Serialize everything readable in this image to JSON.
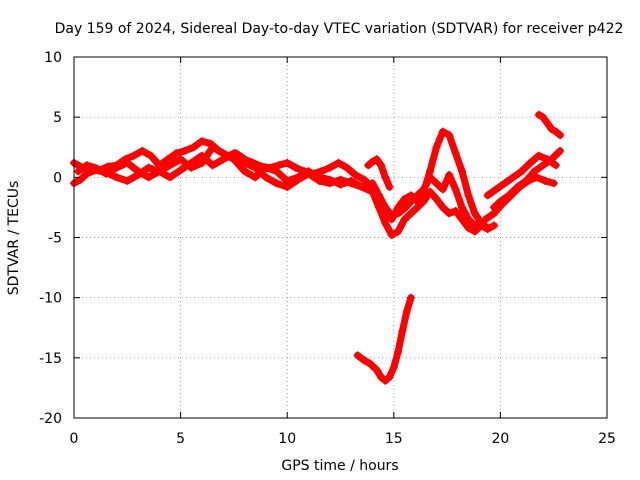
{
  "chart_data": {
    "type": "scatter",
    "title": "Day 159 of 2024, Sidereal Day-to-day VTEC variation (SDTVAR) for receiver p422",
    "xlabel": "GPS time / hours",
    "ylabel": "SDTVAR / TECUs",
    "xlim": [
      0,
      25
    ],
    "ylim": [
      -20,
      10
    ],
    "xticks": [
      "0",
      "5",
      "10",
      "15",
      "20",
      "25"
    ],
    "yticks": [
      "10",
      "5",
      "0",
      "-5",
      "-10",
      "-15",
      "-20"
    ],
    "xtick_values": [
      0,
      5,
      10,
      15,
      20,
      25
    ],
    "ytick_values": [
      10,
      5,
      0,
      -5,
      -10,
      -15,
      -20
    ],
    "grid": true,
    "marker": "plus",
    "color": "#ff0000",
    "series": [
      {
        "name": "trace-1",
        "x": [
          0.0,
          0.4,
          0.8,
          1.2,
          1.6,
          2.0,
          2.4,
          2.8,
          3.2,
          3.6,
          4.0,
          4.4,
          4.8,
          5.2,
          5.6,
          6.0,
          6.4,
          6.8,
          7.2,
          7.6,
          8.0,
          8.4,
          8.8,
          9.2,
          9.6,
          10.0,
          10.4,
          10.8,
          11.2,
          11.6,
          12.0,
          12.4,
          12.8,
          13.2,
          13.6,
          14.0,
          14.3,
          14.6,
          14.9,
          15.2,
          15.5,
          15.8,
          16.1,
          16.4,
          16.7,
          17.0,
          17.3,
          17.6,
          17.9,
          18.2,
          18.5,
          18.8,
          19.1,
          19.4
        ],
        "y": [
          1.2,
          0.8,
          0.5,
          0.6,
          0.9,
          1.0,
          1.5,
          1.8,
          2.2,
          1.8,
          1.0,
          1.5,
          2.0,
          2.2,
          2.5,
          3.0,
          2.8,
          2.2,
          1.8,
          2.0,
          1.5,
          1.2,
          0.9,
          0.8,
          1.0,
          1.2,
          0.8,
          0.5,
          0.3,
          0.5,
          0.8,
          1.2,
          0.8,
          0.2,
          -0.2,
          -0.8,
          -1.5,
          -3.0,
          -3.5,
          -2.5,
          -1.8,
          -1.5,
          -2.0,
          -1.2,
          0.5,
          2.5,
          3.8,
          3.5,
          2.0,
          0.5,
          -1.5,
          -3.0,
          -3.8,
          -4.2
        ]
      },
      {
        "name": "trace-2",
        "x": [
          0.0,
          0.3,
          0.6,
          1.0,
          1.5,
          2.0,
          2.5,
          3.0,
          3.5,
          4.0,
          4.5,
          5.0,
          5.5,
          6.0,
          6.5,
          7.0,
          7.5,
          8.0,
          8.5,
          9.0,
          9.5,
          10.0,
          10.5,
          11.0,
          11.5,
          12.0,
          12.5,
          13.0,
          13.5,
          14.0,
          14.3,
          14.6,
          14.9,
          15.2,
          15.5,
          15.8,
          16.1,
          16.4,
          16.7,
          17.0,
          17.3,
          17.6,
          17.9,
          18.2,
          18.5,
          18.8,
          19.1,
          19.4,
          19.7
        ],
        "y": [
          -0.5,
          -0.2,
          0.3,
          0.6,
          0.4,
          0.0,
          -0.3,
          0.2,
          0.8,
          0.5,
          0.0,
          0.6,
          1.2,
          1.8,
          1.0,
          1.5,
          2.0,
          1.2,
          0.8,
          0.0,
          -0.5,
          -0.8,
          -0.2,
          0.3,
          -0.3,
          -0.5,
          -0.2,
          -0.5,
          -0.8,
          -1.2,
          -2.5,
          -3.8,
          -4.8,
          -4.5,
          -3.5,
          -3.0,
          -2.5,
          -2.0,
          -1.2,
          -1.8,
          -2.5,
          -3.0,
          -2.8,
          -3.5,
          -4.2,
          -4.5,
          -4.0,
          -4.3,
          -4.0
        ]
      },
      {
        "name": "trace-3",
        "x": [
          0.2,
          0.6,
          1.0,
          1.5,
          2.0,
          2.5,
          3.0,
          3.5,
          4.0,
          4.5,
          5.0,
          5.5,
          6.0,
          6.5,
          7.0,
          7.5,
          8.0,
          8.5,
          9.0,
          9.5,
          10.0,
          10.5,
          11.0,
          11.5,
          12.0,
          12.5,
          13.0,
          13.5,
          14.0,
          14.3,
          14.6,
          14.9,
          15.2,
          15.5,
          15.8,
          16.1,
          16.4,
          16.7,
          17.0,
          17.3,
          17.6,
          17.9,
          18.2,
          18.5,
          18.8,
          19.1
        ],
        "y": [
          0.5,
          1.0,
          0.8,
          0.3,
          0.8,
          1.2,
          0.5,
          0.0,
          0.5,
          1.0,
          1.5,
          0.8,
          1.2,
          2.5,
          2.0,
          1.5,
          0.5,
          0.0,
          0.8,
          0.5,
          -0.3,
          0.0,
          0.5,
          0.0,
          -0.2,
          -0.6,
          -0.3,
          -0.8,
          -0.5,
          -1.5,
          -2.5,
          -3.2,
          -3.0,
          -2.6,
          -2.0,
          -1.5,
          -1.0,
          0.0,
          -0.5,
          -1.0,
          0.2,
          -1.0,
          -2.5,
          -3.5,
          -4.0,
          -3.8
        ]
      },
      {
        "name": "trace-4",
        "x": [
          13.3,
          13.6,
          13.9,
          14.2,
          14.4,
          14.6,
          14.8,
          15.0,
          15.2,
          15.4,
          15.6,
          15.8
        ],
        "y": [
          -14.8,
          -15.2,
          -15.5,
          -16.0,
          -16.6,
          -16.9,
          -16.6,
          -15.8,
          -14.5,
          -12.8,
          -11.2,
          -10.0
        ]
      },
      {
        "name": "trace-5",
        "x": [
          13.8,
          14.0,
          14.2,
          14.4,
          14.6,
          14.8
        ],
        "y": [
          1.0,
          1.3,
          1.5,
          1.0,
          0.0,
          -0.8
        ]
      },
      {
        "name": "trace-6",
        "x": [
          19.7,
          20.0,
          20.4,
          20.8,
          21.2,
          21.6,
          22.0,
          22.4,
          22.8
        ],
        "y": [
          -2.5,
          -2.0,
          -1.5,
          -0.8,
          -0.3,
          0.5,
          1.0,
          1.5,
          2.2
        ]
      },
      {
        "name": "trace-7",
        "x": [
          19.4,
          19.8,
          20.2,
          20.6,
          21.0,
          21.4,
          21.8,
          22.2,
          22.6
        ],
        "y": [
          -1.5,
          -1.0,
          -0.5,
          0.0,
          0.5,
          1.2,
          1.8,
          1.5,
          1.0
        ]
      },
      {
        "name": "trace-8",
        "x": [
          19.3,
          19.7,
          20.1,
          20.5,
          20.9,
          21.3,
          21.7,
          22.1,
          22.5
        ],
        "y": [
          -3.5,
          -3.0,
          -2.2,
          -1.5,
          -0.8,
          -0.3,
          0.0,
          -0.3,
          -0.5
        ]
      },
      {
        "name": "trace-9",
        "x": [
          21.8,
          22.0,
          22.2,
          22.4,
          22.6,
          22.8
        ],
        "y": [
          5.2,
          5.0,
          4.5,
          4.0,
          3.8,
          3.5
        ]
      }
    ]
  }
}
